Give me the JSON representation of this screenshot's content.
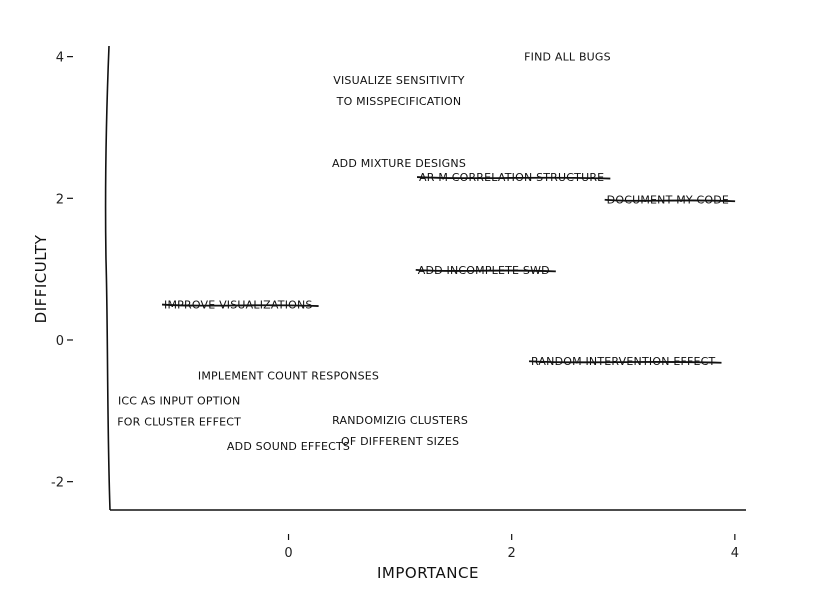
{
  "chart_data": {
    "type": "scatter",
    "title": "",
    "xlabel": "IMPORTANCE",
    "ylabel": "DIFFICULTY",
    "xlim": [
      -1.6,
      4.1
    ],
    "ylim": [
      -2.4,
      4.15
    ],
    "x_ticks": [
      {
        "value": 0,
        "label": "0"
      },
      {
        "value": 2,
        "label": "2"
      },
      {
        "value": 4,
        "label": "4"
      }
    ],
    "y_ticks": [
      {
        "value": -2,
        "label": "-2"
      },
      {
        "value": 0,
        "label": "0"
      },
      {
        "value": 2,
        "label": "2"
      },
      {
        "value": 4,
        "label": "4"
      }
    ],
    "grid": false,
    "legend": "none",
    "points": [
      {
        "x": 2.5,
        "y": 4.0,
        "lines": [
          "FIND ALL BUGS"
        ],
        "done": false
      },
      {
        "x": 0.99,
        "y": 3.52,
        "lines": [
          "VISUALIZE SENSITIVITY",
          "TO MISSPECIFICATION"
        ],
        "done": false
      },
      {
        "x": 0.99,
        "y": 2.5,
        "lines": [
          "ADD MIXTURE DESIGNS"
        ],
        "done": false
      },
      {
        "x": 2.0,
        "y": 2.3,
        "lines": [
          "AR-M CORRELATION STRUCTURE"
        ],
        "done": true
      },
      {
        "x": 3.4,
        "y": 1.98,
        "lines": [
          "DOCUMENT MY CODE"
        ],
        "done": true
      },
      {
        "x": 1.75,
        "y": 0.99,
        "lines": [
          "ADD INCOMPLETE SWD"
        ],
        "done": true
      },
      {
        "x": -0.45,
        "y": 0.5,
        "lines": [
          "IMPROVE VISUALIZATIONS"
        ],
        "done": true
      },
      {
        "x": 3.0,
        "y": -0.3,
        "lines": [
          "RANDOM INTERVENTION EFFECT"
        ],
        "done": true
      },
      {
        "x": 0.0,
        "y": -0.5,
        "lines": [
          "IMPLEMENT COUNT RESPONSES"
        ],
        "done": false
      },
      {
        "x": -0.98,
        "y": -1.0,
        "lines": [
          "ICC AS INPUT OPTION",
          "FOR CLUSTER EFFECT"
        ],
        "done": false
      },
      {
        "x": 1.0,
        "y": -1.28,
        "lines": [
          "RANDOMIZIG CLUSTERS",
          "OF DIFFERENT SIZES"
        ],
        "done": false
      },
      {
        "x": 0.0,
        "y": -1.5,
        "lines": [
          "ADD SOUND EFFECTS"
        ],
        "done": false
      }
    ]
  }
}
